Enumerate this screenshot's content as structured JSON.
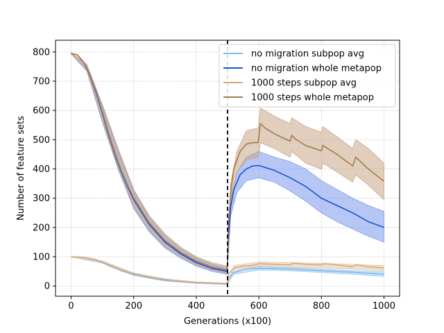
{
  "chart_data": {
    "type": "line",
    "xlabel": "Generations (x100)",
    "ylabel": "Number of feature sets",
    "xlim": [
      -50,
      1050
    ],
    "ylim": [
      -35,
      840
    ],
    "xticks": [
      0,
      200,
      400,
      600,
      800,
      1000
    ],
    "yticks": [
      0,
      100,
      200,
      300,
      400,
      500,
      600,
      700,
      800
    ],
    "grid": true,
    "legend_position": "top-right",
    "migration_marker_x": 500,
    "series": [
      {
        "name": "no migration subpop avg",
        "color": "#7cb8f2",
        "band_color": "#9ccaf5",
        "points": [
          [
            0,
            100
          ],
          [
            40,
            98
          ],
          [
            80,
            90
          ],
          [
            120,
            70
          ],
          [
            160,
            52
          ],
          [
            200,
            40
          ],
          [
            250,
            28
          ],
          [
            300,
            20
          ],
          [
            350,
            15
          ],
          [
            400,
            11
          ],
          [
            450,
            9
          ],
          [
            499,
            7
          ],
          [
            502,
            28
          ],
          [
            520,
            45
          ],
          [
            550,
            56
          ],
          [
            580,
            60
          ],
          [
            620,
            60
          ],
          [
            700,
            58
          ],
          [
            800,
            52
          ],
          [
            900,
            47
          ],
          [
            1000,
            40
          ]
        ],
        "band": [
          [
            0,
            99,
            101
          ],
          [
            100,
            78,
            84
          ],
          [
            200,
            36,
            42
          ],
          [
            300,
            17,
            22
          ],
          [
            400,
            9,
            13
          ],
          [
            499,
            5,
            9
          ],
          [
            520,
            40,
            50
          ],
          [
            600,
            55,
            66
          ],
          [
            700,
            52,
            63
          ],
          [
            800,
            46,
            58
          ],
          [
            900,
            40,
            53
          ],
          [
            1000,
            32,
            48
          ]
        ]
      },
      {
        "name": "no migration whole metapop",
        "color": "#1a4fd6",
        "band_color": "#7a99ec",
        "points": [
          [
            0,
            795
          ],
          [
            20,
            790
          ],
          [
            40,
            765
          ],
          [
            60,
            720
          ],
          [
            80,
            660
          ],
          [
            100,
            590
          ],
          [
            120,
            515
          ],
          [
            140,
            450
          ],
          [
            160,
            390
          ],
          [
            180,
            340
          ],
          [
            200,
            295
          ],
          [
            250,
            210
          ],
          [
            300,
            150
          ],
          [
            350,
            110
          ],
          [
            400,
            80
          ],
          [
            450,
            60
          ],
          [
            499,
            50
          ],
          [
            502,
            160
          ],
          [
            510,
            270
          ],
          [
            520,
            330
          ],
          [
            540,
            380
          ],
          [
            560,
            400
          ],
          [
            580,
            410
          ],
          [
            600,
            412
          ],
          [
            650,
            395
          ],
          [
            700,
            370
          ],
          [
            750,
            340
          ],
          [
            800,
            300
          ],
          [
            850,
            275
          ],
          [
            900,
            250
          ],
          [
            950,
            220
          ],
          [
            1000,
            200
          ]
        ],
        "band": [
          [
            0,
            793,
            797
          ],
          [
            50,
            735,
            755
          ],
          [
            100,
            560,
            615
          ],
          [
            150,
            400,
            465
          ],
          [
            200,
            265,
            325
          ],
          [
            250,
            185,
            235
          ],
          [
            300,
            130,
            172
          ],
          [
            350,
            95,
            128
          ],
          [
            400,
            68,
            96
          ],
          [
            450,
            50,
            75
          ],
          [
            499,
            40,
            62
          ],
          [
            510,
            240,
            300
          ],
          [
            530,
            320,
            390
          ],
          [
            560,
            360,
            440
          ],
          [
            600,
            370,
            460
          ],
          [
            650,
            355,
            440
          ],
          [
            700,
            325,
            425
          ],
          [
            750,
            290,
            400
          ],
          [
            800,
            250,
            360
          ],
          [
            850,
            220,
            330
          ],
          [
            900,
            195,
            300
          ],
          [
            950,
            170,
            275
          ],
          [
            1000,
            150,
            255
          ]
        ]
      },
      {
        "name": "1000 steps subpop avg",
        "color": "#d4a97e",
        "band_color": "#e3c7a8",
        "points": [
          [
            0,
            100
          ],
          [
            40,
            98
          ],
          [
            80,
            90
          ],
          [
            120,
            72
          ],
          [
            160,
            54
          ],
          [
            200,
            42
          ],
          [
            250,
            30
          ],
          [
            300,
            22
          ],
          [
            350,
            16
          ],
          [
            400,
            12
          ],
          [
            450,
            10
          ],
          [
            499,
            8
          ],
          [
            502,
            40
          ],
          [
            520,
            62
          ],
          [
            550,
            68
          ],
          [
            580,
            70
          ],
          [
            600,
            76
          ],
          [
            650,
            74
          ],
          [
            700,
            72
          ],
          [
            710,
            78
          ],
          [
            750,
            74
          ],
          [
            800,
            72
          ],
          [
            810,
            76
          ],
          [
            850,
            72
          ],
          [
            900,
            66
          ],
          [
            910,
            72
          ],
          [
            950,
            66
          ],
          [
            1000,
            62
          ]
        ],
        "band": [
          [
            0,
            99,
            101
          ],
          [
            100,
            80,
            86
          ],
          [
            200,
            38,
            45
          ],
          [
            300,
            19,
            25
          ],
          [
            400,
            10,
            14
          ],
          [
            499,
            6,
            10
          ],
          [
            520,
            55,
            70
          ],
          [
            600,
            68,
            82
          ],
          [
            700,
            64,
            80
          ],
          [
            800,
            62,
            78
          ],
          [
            900,
            58,
            74
          ],
          [
            1000,
            52,
            70
          ]
        ]
      },
      {
        "name": "1000 steps whole metapop",
        "color": "#a37a4e",
        "band_color": "#c9a585",
        "points": [
          [
            0,
            795
          ],
          [
            20,
            790
          ],
          [
            40,
            765
          ],
          [
            60,
            722
          ],
          [
            80,
            665
          ],
          [
            100,
            595
          ],
          [
            120,
            520
          ],
          [
            140,
            455
          ],
          [
            160,
            395
          ],
          [
            180,
            345
          ],
          [
            200,
            300
          ],
          [
            250,
            215
          ],
          [
            300,
            155
          ],
          [
            350,
            115
          ],
          [
            400,
            85
          ],
          [
            450,
            65
          ],
          [
            499,
            55
          ],
          [
            502,
            200
          ],
          [
            510,
            320
          ],
          [
            520,
            400
          ],
          [
            540,
            460
          ],
          [
            560,
            485
          ],
          [
            580,
            490
          ],
          [
            598,
            490
          ],
          [
            605,
            555
          ],
          [
            620,
            540
          ],
          [
            650,
            520
          ],
          [
            690,
            500
          ],
          [
            700,
            495
          ],
          [
            705,
            515
          ],
          [
            720,
            500
          ],
          [
            750,
            480
          ],
          [
            800,
            462
          ],
          [
            805,
            480
          ],
          [
            820,
            470
          ],
          [
            850,
            450
          ],
          [
            900,
            410
          ],
          [
            910,
            440
          ],
          [
            930,
            420
          ],
          [
            950,
            400
          ],
          [
            1000,
            358
          ]
        ],
        "band": [
          [
            0,
            793,
            797
          ],
          [
            50,
            738,
            758
          ],
          [
            100,
            565,
            620
          ],
          [
            150,
            405,
            470
          ],
          [
            200,
            270,
            330
          ],
          [
            250,
            190,
            240
          ],
          [
            300,
            135,
            178
          ],
          [
            350,
            100,
            133
          ],
          [
            400,
            72,
            100
          ],
          [
            450,
            54,
            80
          ],
          [
            499,
            44,
            68
          ],
          [
            510,
            290,
            350
          ],
          [
            530,
            390,
            460
          ],
          [
            560,
            430,
            530
          ],
          [
            598,
            440,
            540
          ],
          [
            605,
            490,
            608
          ],
          [
            650,
            470,
            580
          ],
          [
            700,
            440,
            555
          ],
          [
            705,
            460,
            575
          ],
          [
            750,
            420,
            545
          ],
          [
            800,
            400,
            525
          ],
          [
            805,
            420,
            545
          ],
          [
            850,
            390,
            510
          ],
          [
            900,
            355,
            470
          ],
          [
            910,
            380,
            500
          ],
          [
            950,
            345,
            470
          ],
          [
            1000,
            295,
            420
          ]
        ]
      }
    ]
  }
}
